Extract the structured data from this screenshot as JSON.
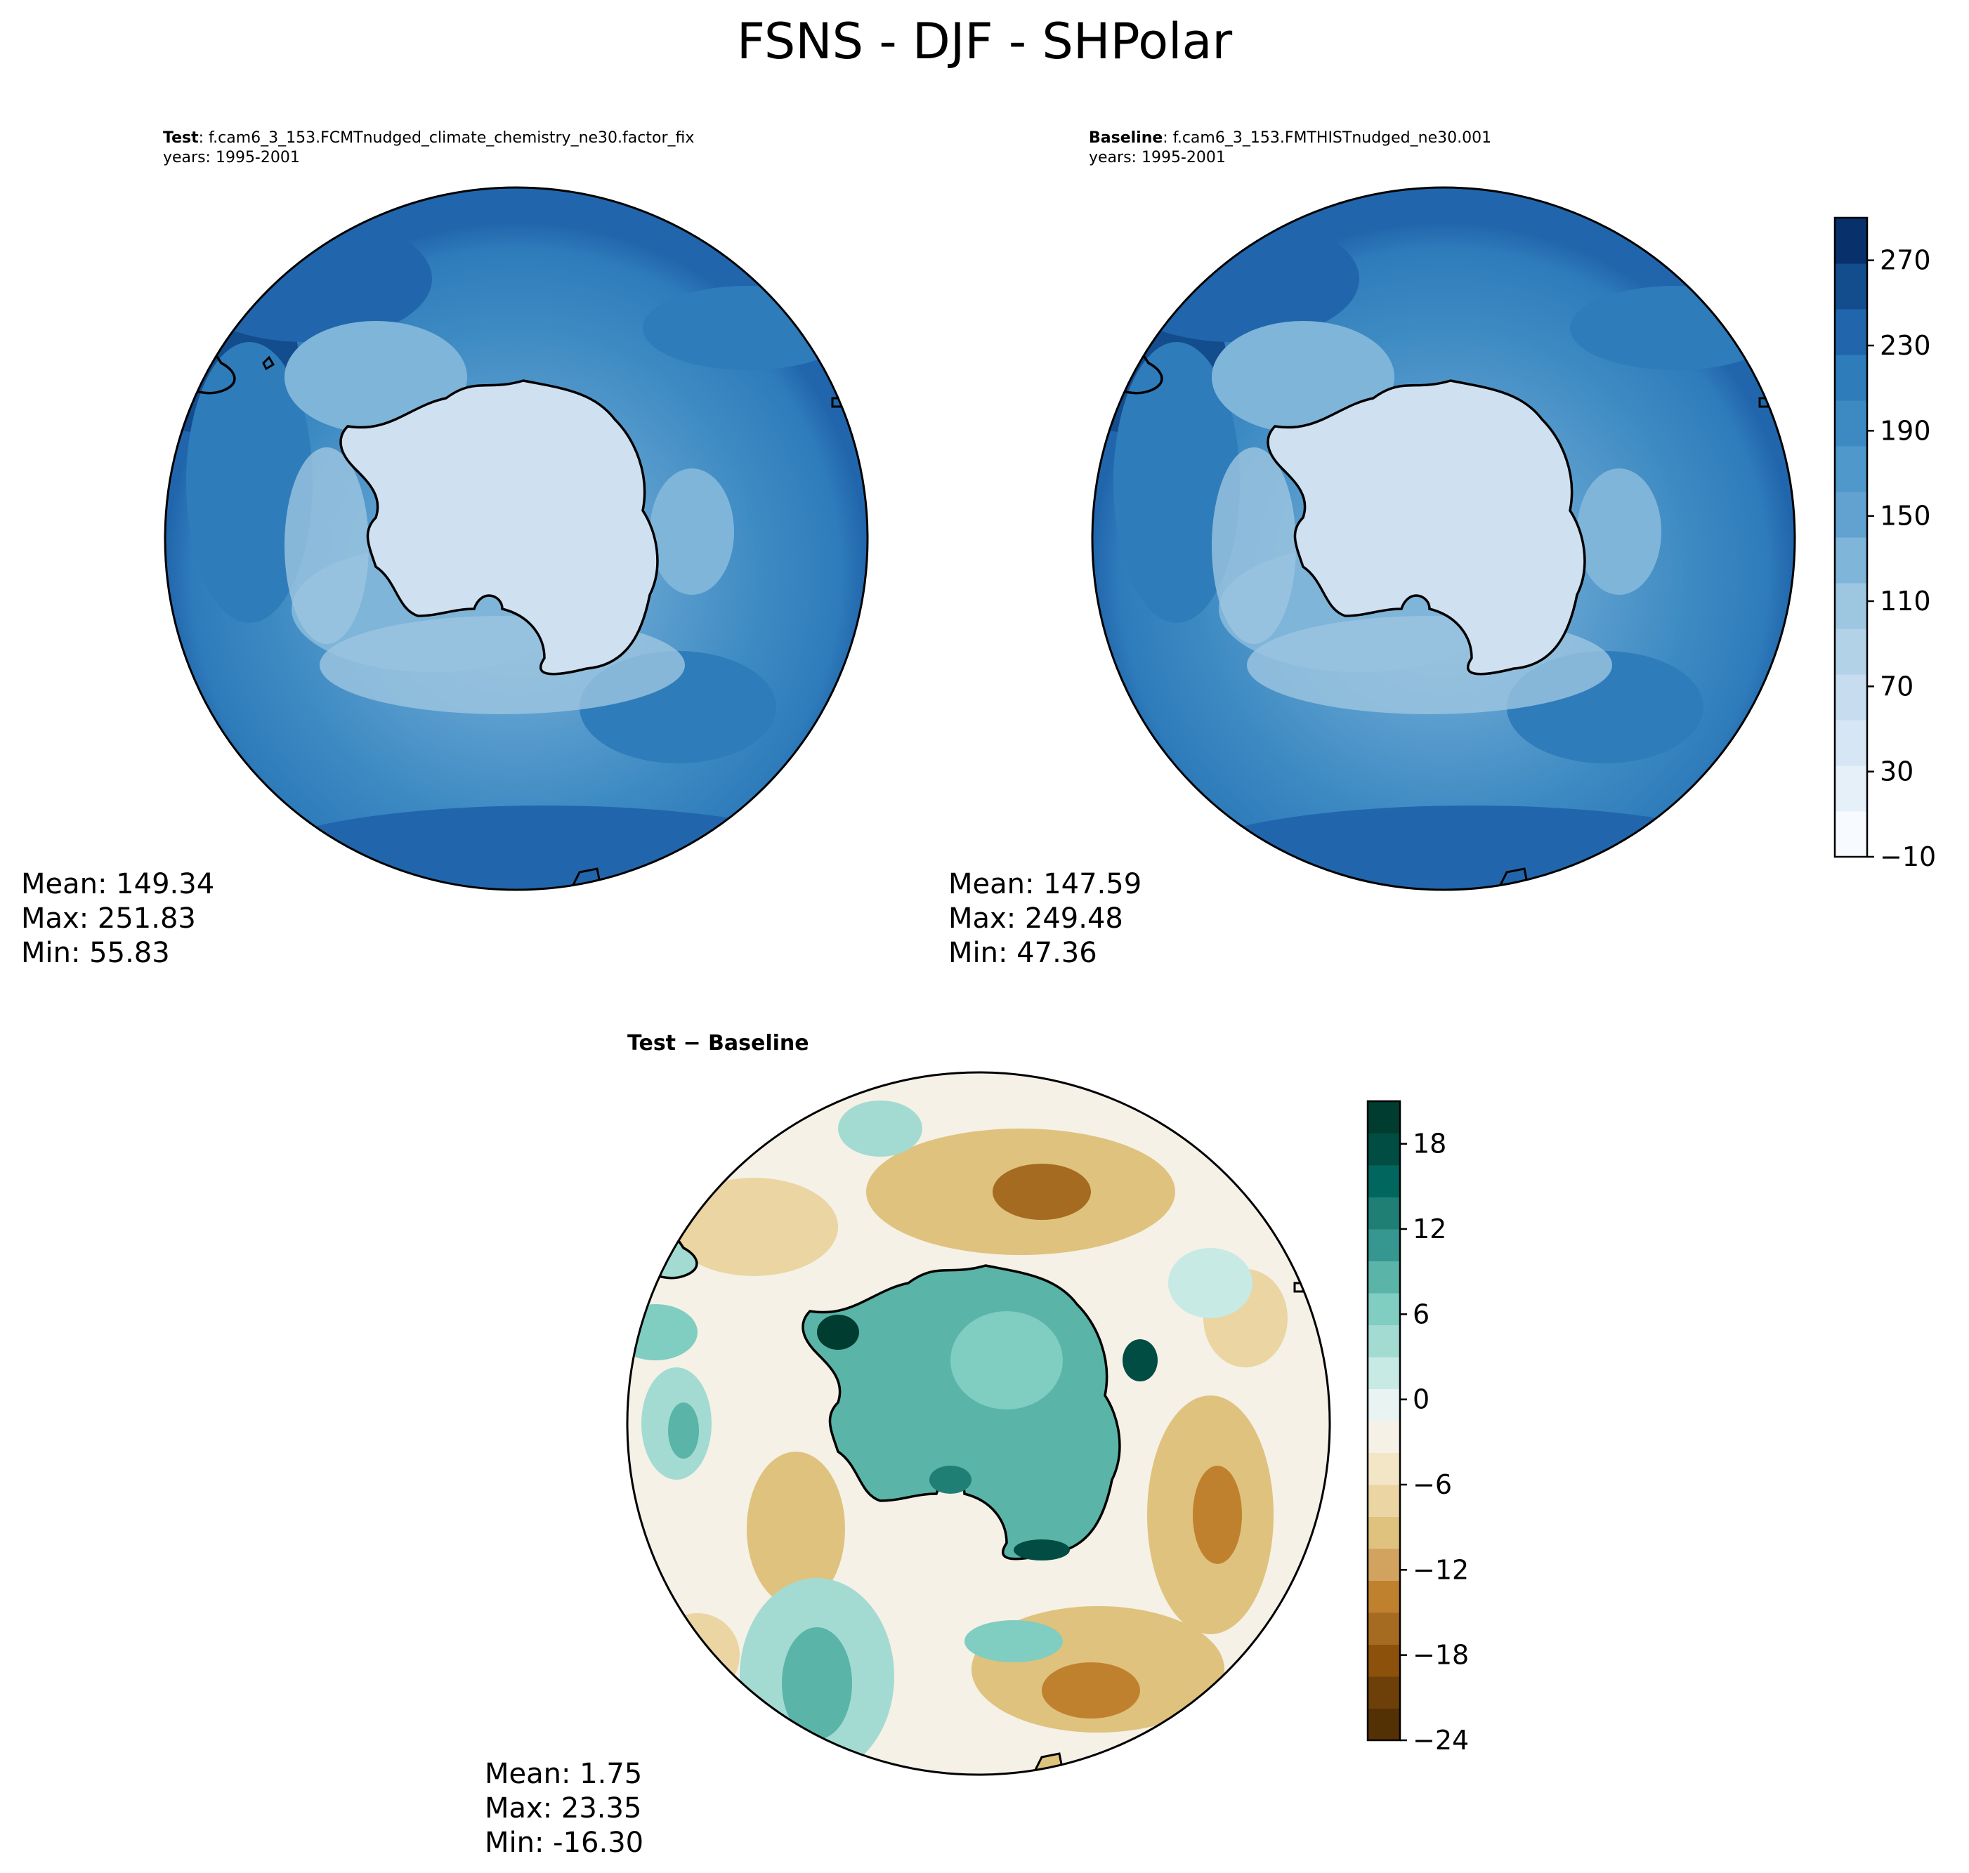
{
  "figure": {
    "title": "FSNS - DJF - SHPolar"
  },
  "panels": {
    "test": {
      "label": "Test",
      "case": ": f.cam6_3_153.FCMTnudged_climate_chemistry_ne30.factor_fix",
      "years": "years: 1995-2001",
      "mean": "Mean: 149.34",
      "max": "Max: 251.83",
      "min": "Min: 55.83"
    },
    "baseline": {
      "label": "Baseline",
      "case": ": f.cam6_3_153.FMTHISTnudged_ne30.001",
      "years": "years: 1995-2001",
      "mean": "Mean: 147.59",
      "max": "Max: 249.48",
      "min": "Min: 47.36"
    },
    "diff": {
      "title": "Test − Baseline",
      "mean": "Mean:  1.75",
      "max": "Max: 23.35",
      "min": "Min: -16.30"
    }
  },
  "colors": {
    "blues": [
      "#f7fbff",
      "#e6f0f9",
      "#d7e6f4",
      "#c8dcef",
      "#b2d2e8",
      "#9dc6e0",
      "#7fb5d9",
      "#62a2d0",
      "#4f98cb",
      "#3d8ac3",
      "#2f7cbb",
      "#2166ac",
      "#134d8e",
      "#08306b"
    ],
    "brbg": [
      "#543005",
      "#6d4009",
      "#8c510a",
      "#a56b20",
      "#bf812d",
      "#d1a35f",
      "#dfc27d",
      "#ead5a3",
      "#f3e6c6",
      "#f5f1e6",
      "#e9f4f2",
      "#c7eae5",
      "#a3dbd2",
      "#80cdc1",
      "#5ab4a8",
      "#35978f",
      "#1f7f75",
      "#01665e",
      "#014d43",
      "#003c30"
    ],
    "coast": "#000000",
    "antarctica_test": "#cfe0f1"
  },
  "chart_data": [
    {
      "type": "heatmap",
      "name": "test",
      "projection": "south polar stereographic",
      "colorbar": null
    },
    {
      "type": "heatmap",
      "name": "baseline",
      "projection": "south polar stereographic",
      "colorbar": {
        "levels_min": -10,
        "levels_max": 290,
        "ticks": [
          -10,
          30,
          70,
          110,
          150,
          190,
          230,
          270
        ],
        "tick_labels": [
          "−10",
          "30",
          "70",
          "110",
          "150",
          "190",
          "230",
          "270"
        ],
        "colormap": "Blues"
      }
    },
    {
      "type": "heatmap",
      "name": "diff",
      "projection": "south polar stereographic",
      "colorbar": {
        "levels_min": -24,
        "levels_max": 21,
        "ticks": [
          -24,
          -18,
          -12,
          -6,
          0,
          6,
          12,
          18
        ],
        "tick_labels": [
          "−24",
          "−18",
          "−12",
          "−6",
          "0",
          "6",
          "12",
          "18"
        ],
        "colormap": "BrBG"
      }
    }
  ]
}
